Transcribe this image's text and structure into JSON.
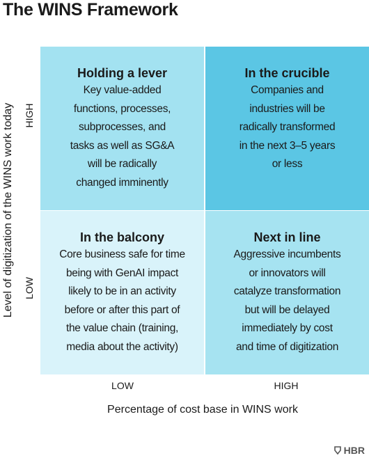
{
  "header": {
    "title": "The WINS Framework"
  },
  "y_axis": {
    "label": "Level of digitization of the WINS work today",
    "high": "HIGH",
    "low": "LOW"
  },
  "x_axis": {
    "label": "Percentage of cost base in WINS work",
    "low": "LOW",
    "high": "HIGH"
  },
  "quadrants": [
    {
      "title": "Holding a lever",
      "lines": [
        "Key value-added",
        "functions, processes,",
        "subprocesses, and",
        "tasks as well as SG&A",
        "will be radically",
        "changed imminently"
      ]
    },
    {
      "title": "In the crucible",
      "lines": [
        "Companies and",
        "industries will be",
        "radically transformed",
        "in the next 3–5 years",
        "or less"
      ]
    },
    {
      "title": "In the balcony",
      "lines": [
        "Core business safe for time",
        "being with GenAI impact",
        "likely to be in an activity",
        "before or after this part of",
        "the value chain (training,",
        "media about the activity)"
      ]
    },
    {
      "title": "Next in line",
      "lines": [
        "Aggressive incumbents",
        "or innovators will",
        "catalyze transformation",
        "but will be delayed",
        "immediately by cost",
        "and time of digitization"
      ]
    }
  ],
  "footer": {
    "logo": "HBR"
  }
}
